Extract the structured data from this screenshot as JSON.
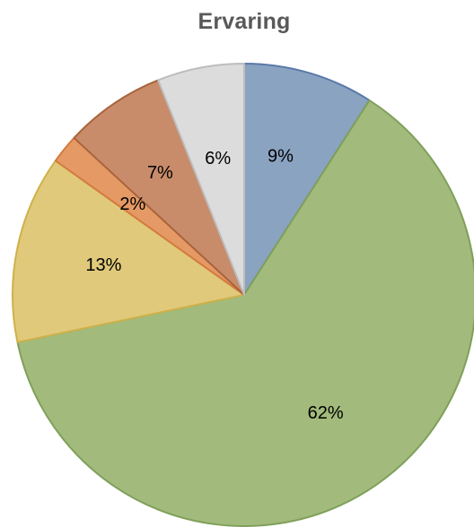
{
  "chart_data": {
    "type": "pie",
    "title": "Ervaring",
    "categories": [
      "",
      "",
      "",
      "",
      "",
      ""
    ],
    "values": [
      9,
      62,
      13,
      2,
      7,
      6
    ],
    "labels": [
      "9%",
      "62%",
      "13%",
      "2%",
      "7%",
      "6%"
    ],
    "colors": [
      "#8aa3c1",
      "#a2bb7c",
      "#e0c97a",
      "#e59a66",
      "#c98c6a",
      "#dcdcdc"
    ],
    "border_colors": [
      "#5a79a8",
      "#7fa05a",
      "#cfb14a",
      "#d47a3e",
      "#a9643d",
      "#bdbdbd"
    ],
    "start": "12 o'clock",
    "direction": "clockwise",
    "legend": "none"
  }
}
